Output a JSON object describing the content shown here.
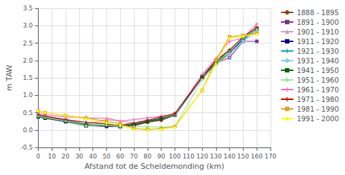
{
  "chart_data": {
    "type": "line",
    "xlabel": "Afstand tot de Scheldemonding (km)",
    "ylabel": "m TAW",
    "xlim": [
      0,
      170
    ],
    "ylim": [
      -0.5,
      3.5
    ],
    "xticks": [
      0,
      10,
      20,
      30,
      40,
      50,
      60,
      70,
      80,
      90,
      100,
      110,
      120,
      130,
      140,
      150,
      160,
      170
    ],
    "yticks": [
      -0.5,
      {
        "value": 0,
        "label": "0.0"
      },
      0.5,
      {
        "value": 1,
        "label": "1.0"
      },
      1.5,
      {
        "value": 2,
        "label": "2.0"
      },
      2.5,
      {
        "value": 3,
        "label": "3.0"
      },
      3.5
    ],
    "grid": true,
    "legend": "right",
    "x": [
      0,
      5,
      20,
      35,
      50,
      60,
      70,
      80,
      90,
      100,
      120,
      130,
      140,
      150,
      160
    ],
    "series": [
      {
        "name": "1888 - 1895",
        "color": "#8B4513",
        "marker": "circle",
        "values": [
          0.42,
          0.38,
          0.3,
          0.15,
          0.12,
          0.1,
          0.12,
          0.22,
          0.28,
          0.42,
          1.5,
          1.9,
          2.2,
          2.62,
          2.88
        ]
      },
      {
        "name": "1891 - 1900",
        "color": "#7B2D8B",
        "marker": "square",
        "values": [
          0.4,
          0.36,
          0.28,
          0.14,
          0.1,
          0.1,
          0.14,
          0.25,
          0.3,
          0.44,
          1.5,
          1.92,
          2.08,
          2.55,
          2.55
        ]
      },
      {
        "name": "1901 - 1910",
        "color": "#C8A0C8",
        "marker": "triangle",
        "values": [
          0.44,
          0.4,
          0.3,
          0.16,
          0.3,
          0.26,
          0.2,
          0.27,
          0.32,
          0.42,
          1.5,
          1.92,
          2.1,
          2.58,
          2.88
        ]
      },
      {
        "name": "1911 - 1920",
        "color": "#00008B",
        "marker": "square",
        "values": [
          0.38,
          0.34,
          0.24,
          0.12,
          0.12,
          0.1,
          0.15,
          0.25,
          0.33,
          0.43,
          1.52,
          1.93,
          2.22,
          2.62,
          2.92
        ]
      },
      {
        "name": "1921 - 1930",
        "color": "#00AAAA",
        "marker": "plus",
        "values": [
          0.4,
          0.36,
          0.26,
          0.15,
          0.14,
          0.12,
          0.15,
          0.25,
          0.33,
          0.42,
          1.52,
          1.93,
          2.2,
          2.6,
          2.9
        ]
      },
      {
        "name": "1931 - 1940",
        "color": "#87CEEB",
        "marker": "circle",
        "values": [
          0.44,
          0.4,
          0.3,
          0.22,
          0.18,
          0.14,
          0.2,
          0.28,
          0.36,
          0.43,
          1.58,
          2.0,
          2.2,
          2.55,
          2.82
        ]
      },
      {
        "name": "1941 - 1950",
        "color": "#006400",
        "marker": "square",
        "values": [
          0.4,
          0.36,
          0.26,
          0.15,
          0.14,
          0.12,
          0.16,
          0.25,
          0.32,
          0.45,
          1.53,
          1.95,
          2.28,
          2.65,
          2.92
        ]
      },
      {
        "name": "1951 - 1960",
        "color": "#90EE90",
        "marker": "diamond",
        "values": [
          0.4,
          0.36,
          0.26,
          0.12,
          0.14,
          0.1,
          0.1,
          0.1,
          0.08,
          0.1,
          1.45,
          1.88,
          2.28,
          2.65,
          2.9
        ]
      },
      {
        "name": "1961 - 1970",
        "color": "#FF69B4",
        "marker": "plus",
        "values": [
          0.48,
          0.44,
          0.38,
          0.35,
          0.34,
          0.26,
          0.3,
          0.35,
          0.4,
          0.45,
          1.6,
          2.05,
          2.55,
          2.65,
          3.05
        ]
      },
      {
        "name": "1971 - 1980",
        "color": "#CC0000",
        "marker": "plus",
        "values": [
          0.44,
          0.4,
          0.3,
          0.22,
          0.18,
          0.14,
          0.2,
          0.28,
          0.38,
          0.48,
          1.52,
          2.0,
          2.3,
          2.68,
          2.95
        ]
      },
      {
        "name": "1981 - 1990",
        "color": "#DAA520",
        "marker": "square",
        "values": [
          0.55,
          0.5,
          0.42,
          0.35,
          0.25,
          0.18,
          0.05,
          0.02,
          0.05,
          0.1,
          1.14,
          2.0,
          2.68,
          2.72,
          2.78
        ]
      },
      {
        "name": "1991 - 2000",
        "color": "#FFFF00",
        "marker": "diamond",
        "values": [
          0.55,
          0.5,
          0.42,
          0.32,
          0.2,
          0.14,
          0.02,
          0.0,
          0.02,
          0.08,
          1.14,
          1.9,
          2.65,
          2.7,
          2.75
        ]
      }
    ]
  }
}
